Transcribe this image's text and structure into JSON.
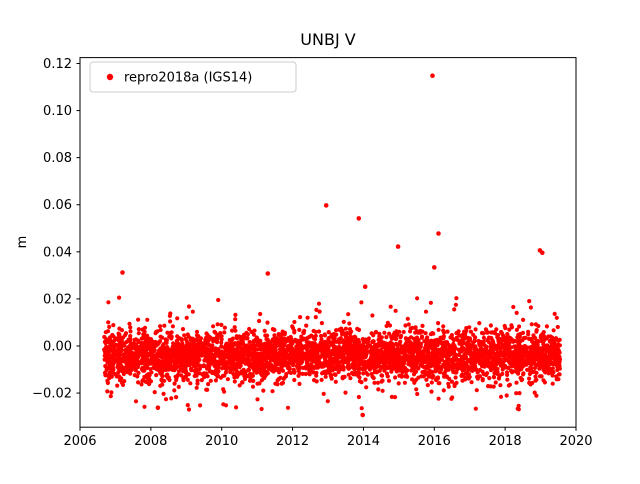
{
  "title": "UNBJ V",
  "ylabel": "m",
  "legend": {
    "label": "repro2018a (IGS14)",
    "marker_color": "#ff0000"
  },
  "chart_data": {
    "type": "scatter",
    "title": "UNBJ V",
    "xlabel": "",
    "ylabel": "m",
    "series_name": "repro2018a (IGS14)",
    "marker_color": "#ff0000",
    "xlim": [
      2006,
      2020
    ],
    "ylim": [
      -0.0345,
      0.1225
    ],
    "xticks": [
      2006,
      2008,
      2010,
      2012,
      2014,
      2016,
      2018,
      2020
    ],
    "yticks": [
      -0.02,
      0.0,
      0.02,
      0.04,
      0.06,
      0.08,
      0.1,
      0.12
    ],
    "grid": false,
    "legend_position": "upper left",
    "data_x_range": [
      2006.68,
      2019.55
    ],
    "noise_band": {
      "description": "dense daily solution scatter band",
      "mean": -0.004,
      "std": 0.005,
      "wide_std": 0.011,
      "wide_fraction": 0.08,
      "clip_min": -0.027,
      "clip_max": 0.021,
      "n_points": 4200,
      "seed": 42
    },
    "outliers": [
      [
        2007.2,
        0.0312
      ],
      [
        2008.2,
        -0.0262
      ],
      [
        2011.3,
        0.0308
      ],
      [
        2012.95,
        0.0597
      ],
      [
        2013.87,
        0.0542
      ],
      [
        2014.05,
        0.0252
      ],
      [
        2013.98,
        -0.0293
      ],
      [
        2014.98,
        0.0422
      ],
      [
        2015.95,
        0.1148
      ],
      [
        2016.0,
        0.0334
      ],
      [
        2016.12,
        0.0478
      ],
      [
        2018.98,
        0.0406
      ],
      [
        2019.05,
        0.0396
      ]
    ]
  }
}
